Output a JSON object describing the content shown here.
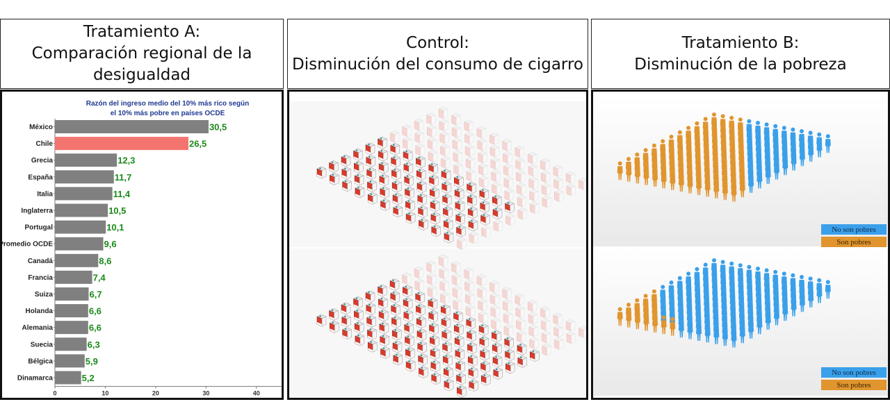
{
  "headers": {
    "a": {
      "line1": "Tratamiento A:",
      "line2": "Comparación regional de la",
      "line3": "desigualdad"
    },
    "control": {
      "line1": "Control:",
      "line2": "Disminución del consumo de cigarro"
    },
    "b": {
      "line1": "Tratamiento B:",
      "line2": "Disminución de la pobreza"
    }
  },
  "chart_data": {
    "type": "bar",
    "orientation": "horizontal",
    "title_line1": "Razón del ingreso medio del 10% más rico según",
    "title_line2": "el 10% más pobre en países OCDE",
    "categories": [
      "México",
      "Chile",
      "Grecia",
      "España",
      "Italia",
      "Inglaterra",
      "Portugal",
      "Promedio OCDE",
      "Canadá",
      "Francia",
      "Suiza",
      "Holanda",
      "Alemania",
      "Suecia",
      "Bélgica",
      "Dinamarca"
    ],
    "values": [
      30.5,
      26.5,
      12.3,
      11.7,
      11.4,
      10.5,
      10.1,
      9.6,
      8.6,
      7.4,
      6.7,
      6.6,
      6.6,
      6.3,
      5.9,
      5.2
    ],
    "value_labels": [
      "30,5",
      "26,5",
      "12,3",
      "11,7",
      "11,4",
      "10,5",
      "10,1",
      "9,6",
      "8,6",
      "7,4",
      "6,7",
      "6,6",
      "6,6",
      "6,3",
      "5,9",
      "5,2"
    ],
    "highlight": "Chile",
    "colors": {
      "default": "#808080",
      "highlight": "#f4756f",
      "value_text": "#1a8a1a"
    },
    "xlim": [
      0,
      45
    ],
    "xticks": [
      0,
      10,
      20,
      30,
      40
    ]
  },
  "legend": {
    "no_pobres": "No son pobres",
    "pobres": "Son pobres",
    "no_pobres_color": "#3aa0ea",
    "pobres_color": "#e0952e"
  },
  "icons": {
    "control": "cigarette-pack-icon",
    "b": "person-figure-icon"
  }
}
